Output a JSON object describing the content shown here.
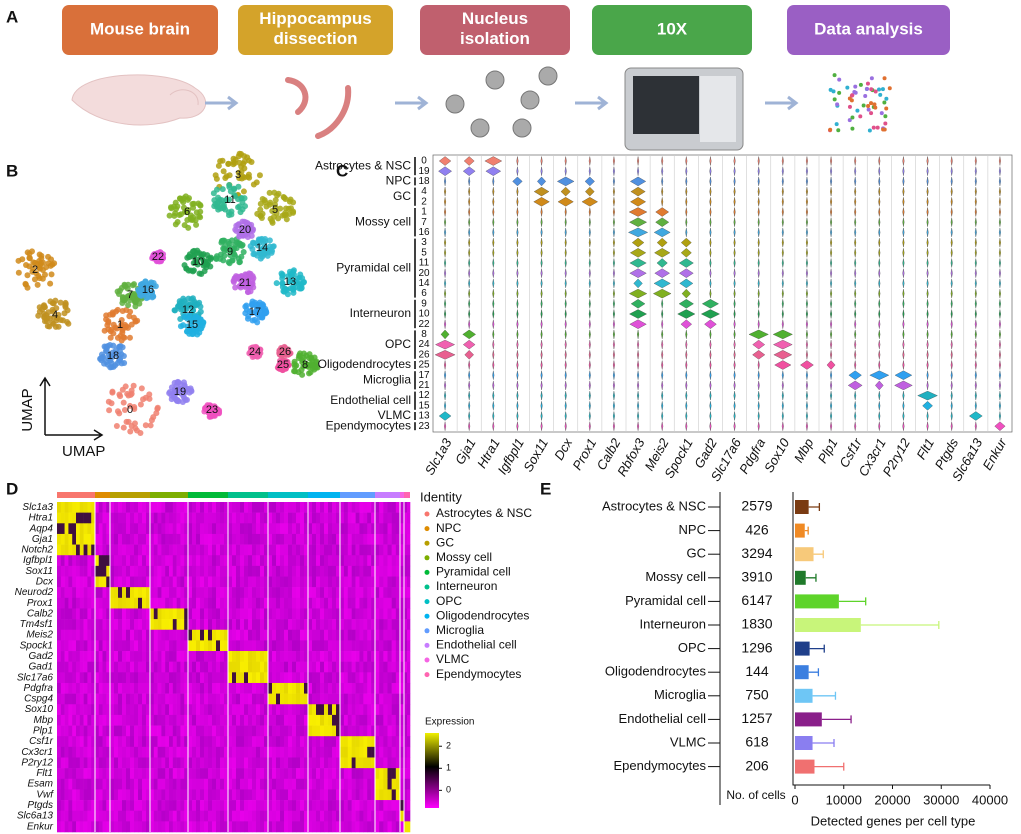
{
  "panel_a": {
    "letter": "A",
    "steps": [
      "Mouse brain",
      "Hippocampus dissection",
      "Nucleus isolation",
      "10X",
      "Data analysis"
    ]
  },
  "panel_b": {
    "letter": "B",
    "x_label": "UMAP",
    "y_label": "UMAP",
    "clusters": [
      "0",
      "1",
      "2",
      "3",
      "4",
      "5",
      "6",
      "7",
      "8",
      "9",
      "10",
      "11",
      "12",
      "13",
      "14",
      "15",
      "16",
      "17",
      "18",
      "19",
      "20",
      "21",
      "22",
      "23",
      "24",
      "25",
      "26"
    ]
  },
  "panel_c": {
    "letter": "C",
    "cell_types": [
      "Astrocytes & NSC",
      "NPC",
      "GC",
      "Mossy cell",
      "Pyramidal cell",
      "Interneuron",
      "OPC",
      "Oligodendrocytes",
      "Microglia",
      "Endothelial cell",
      "VLMC",
      "Ependymocytes"
    ],
    "clusters": [
      "0",
      "19",
      "18",
      "4",
      "2",
      "1",
      "7",
      "16",
      "3",
      "5",
      "11",
      "20",
      "14",
      "6",
      "9",
      "10",
      "22",
      "8",
      "24",
      "26",
      "25",
      "17",
      "21",
      "12",
      "15",
      "13",
      "23"
    ],
    "genes": [
      "Slc1a3",
      "Gja1",
      "Htra1",
      "Igfbpl1",
      "Sox11",
      "Dcx",
      "Prox1",
      "Calb2",
      "Rbfox3",
      "Meis2",
      "Spock1",
      "Gad2",
      "Slc17a6",
      "Pdgfra",
      "Sox10",
      "Mbp",
      "Plp1",
      "Csf1r",
      "Cx3cr1",
      "P2ry12",
      "Flt1",
      "Ptgds",
      "Slc6a13",
      "Enkur"
    ]
  },
  "panel_d": {
    "letter": "D",
    "genes": [
      "Slc1a3",
      "Htra1",
      "Aqp4",
      "Gja1",
      "Notch2",
      "Igfbpl1",
      "Sox11",
      "Dcx",
      "Neurod2",
      "Prox1",
      "Calb2",
      "Tm4sf1",
      "Meis2",
      "Spock1",
      "Gad2",
      "Gad1",
      "Slc17a6",
      "Pdgfra",
      "Cspg4",
      "Sox10",
      "Mbp",
      "Plp1",
      "Csf1r",
      "Cx3cr1",
      "P2ry12",
      "Flt1",
      "Esam",
      "Vwf",
      "Ptgds",
      "Slc6a13",
      "Enkur"
    ],
    "legend_title": "Identity",
    "identities": [
      "Astrocytes & NSC",
      "NPC",
      "GC",
      "Mossy cell",
      "Pyramidal cell",
      "Interneuron",
      "OPC",
      "Oligodendrocytes",
      "Microglia",
      "Endothelial cell",
      "VLMC",
      "Ependymocytes"
    ],
    "identity_colors": [
      "#f8766d",
      "#de8c00",
      "#b79f00",
      "#7cae00",
      "#00ba38",
      "#00c08b",
      "#00bfc4",
      "#00b4f0",
      "#619cff",
      "#c77cff",
      "#f564e3",
      "#ff64b0"
    ],
    "scale_title": "Expression",
    "scale_ticks": [
      2,
      1,
      0
    ]
  },
  "chart_data": {
    "type": "bar",
    "letter": "E",
    "categories": [
      "Astrocytes & NSC",
      "NPC",
      "GC",
      "Mossy cell",
      "Pyramidal cell",
      "Interneuron",
      "OPC",
      "Oligodendrocytes",
      "Microglia",
      "Endothelial cell",
      "VLMC",
      "Ependymocytes"
    ],
    "cell_counts": [
      2579,
      426,
      3294,
      3910,
      6147,
      1830,
      1296,
      144,
      750,
      1257,
      618,
      206
    ],
    "counts_label": "No. of cells",
    "values": [
      2800,
      2000,
      3800,
      2200,
      9000,
      13500,
      3000,
      2800,
      3600,
      5500,
      3600,
      4000
    ],
    "errors": [
      2200,
      700,
      2000,
      2100,
      5500,
      16000,
      3000,
      2000,
      4700,
      6000,
      4400,
      6000
    ],
    "colors": [
      "#7a3b12",
      "#f08a24",
      "#f7c97a",
      "#1f7a2a",
      "#5ed42a",
      "#c8f57a",
      "#1f3f8a",
      "#3b7fe0",
      "#6ec6f5",
      "#8a1f8a",
      "#8a7ef0",
      "#f07070"
    ],
    "x_label": "Detected genes per cell type",
    "xlim": [
      0,
      40000
    ],
    "xticks": [
      0,
      10000,
      20000,
      30000,
      40000
    ]
  }
}
